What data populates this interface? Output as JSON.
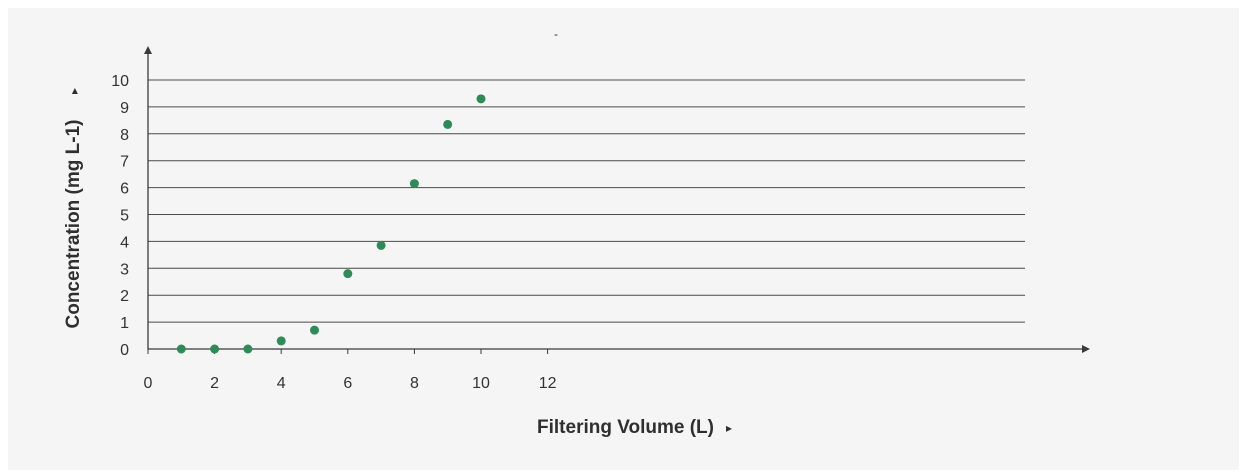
{
  "chart_data": {
    "type": "scatter",
    "title": "-",
    "xlabel": "Filtering Volume (L)",
    "ylabel": "Concentration (mg L-1)",
    "xlim": [
      0,
      13
    ],
    "ylim": [
      0,
      10
    ],
    "x_ticks": [
      0,
      2,
      4,
      6,
      8,
      10,
      12
    ],
    "y_ticks": [
      0,
      1,
      2,
      3,
      4,
      5,
      6,
      7,
      8,
      9,
      10
    ],
    "grid": "horizontal",
    "series": [
      {
        "x": [
          1,
          2,
          3,
          4,
          5,
          6,
          7,
          8,
          9,
          10
        ],
        "y": [
          0.0,
          0.0,
          0.0,
          0.3,
          0.7,
          2.8,
          3.85,
          6.15,
          8.35,
          9.3
        ],
        "color": "#2e8b57"
      }
    ],
    "axis_arrow_glyph": "▸"
  }
}
